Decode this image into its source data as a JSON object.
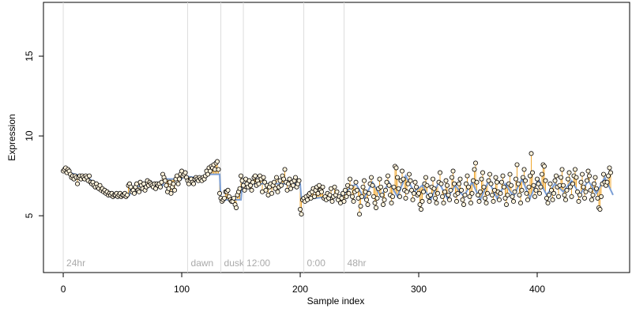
{
  "chart_data": {
    "type": "scatter",
    "x_label": "Sample index",
    "y_label": "Expression",
    "xlim": [
      -16.7,
      478
    ],
    "ylim": [
      1.44,
      18.37
    ],
    "xticks": [
      0,
      100,
      200,
      300,
      400
    ],
    "yticks": [
      5,
      10,
      15
    ],
    "annotations": [
      {
        "x": 0,
        "label": "24hr"
      },
      {
        "x": 105,
        "label": "dawn"
      },
      {
        "x": 133,
        "label": "dusk"
      },
      {
        "x": 152,
        "label": "12:00"
      },
      {
        "x": 203,
        "label": "0:00"
      },
      {
        "x": 237,
        "label": "48hr"
      }
    ],
    "residual_color": "#f0a830",
    "series": [
      {
        "color": "#000000",
        "values": [
          7.8,
          7.9,
          8.0,
          7.7,
          7.9,
          7.8,
          7.6,
          7.4,
          7.5,
          7.3,
          7.5,
          7.4,
          7.0,
          7.4,
          7.5,
          7.3,
          7.5,
          7.4,
          7.3,
          7.5,
          7.4,
          7.2,
          7.5,
          7.1,
          7.0,
          7.1,
          6.9,
          6.8,
          7.0,
          6.8,
          6.7,
          6.9,
          6.6,
          6.7,
          6.5,
          6.6,
          6.4,
          6.5,
          6.3,
          6.4,
          6.3,
          6.4,
          6.2,
          6.3,
          6.3,
          6.4,
          6.2,
          6.3,
          6.4,
          6.2,
          6.3,
          6.3,
          6.4,
          6.2,
          6.3,
          6.9,
          7.0,
          6.8,
          6.5,
          6.6,
          6.4,
          6.8,
          7.0,
          6.6,
          6.5,
          7.1,
          6.9,
          6.7,
          7.0,
          6.6,
          6.8,
          7.2,
          6.9,
          7.1,
          7.0,
          6.9,
          6.8,
          7.0,
          6.7,
          7.0,
          6.9,
          7.0,
          6.8,
          7.1,
          7.6,
          7.4,
          7.2,
          6.9,
          6.5,
          6.7,
          7.1,
          6.4,
          6.8,
          7.0,
          6.6,
          7.3,
          7.5,
          7.0,
          7.3,
          7.6,
          7.8,
          7.5,
          7.6,
          7.7,
          7.4,
          7.2,
          7.0,
          7.2,
          7.3,
          7.1,
          7.0,
          7.3,
          7.4,
          7.3,
          7.2,
          7.4,
          7.3,
          7.2,
          7.4,
          7.3,
          7.5,
          7.8,
          7.6,
          8.0,
          7.8,
          8.1,
          8.0,
          8.2,
          7.9,
          8.3,
          8.4,
          7.9,
          6.4,
          6.1,
          5.9,
          6.0,
          6.1,
          6.5,
          6.5,
          6.6,
          6.2,
          6.0,
          5.9,
          5.9,
          6.1,
          5.7,
          5.5,
          6.3,
          6.5,
          6.7,
          7.5,
          7.2,
          6.9,
          6.6,
          7.3,
          7.0,
          6.8,
          7.2,
          6.9,
          6.6,
          7.1,
          7.4,
          7.5,
          6.9,
          7.2,
          7.0,
          7.5,
          7.3,
          6.5,
          7.4,
          7.1,
          6.6,
          6.9,
          6.3,
          6.8,
          7.0,
          6.4,
          6.9,
          7.1,
          6.7,
          7.4,
          6.5,
          6.8,
          7.2,
          6.9,
          7.5,
          7.3,
          7.9,
          7.1,
          6.6,
          7.0,
          7.3,
          6.7,
          7.1,
          6.9,
          7.2,
          7.4,
          6.8,
          7.0,
          7.2,
          5.4,
          5.1,
          6.0,
          6.1,
          5.9,
          6.2,
          6.0,
          6.3,
          6.4,
          6.1,
          6.5,
          6.7,
          6.2,
          6.6,
          6.8,
          6.4,
          6.9,
          6.6,
          6.5,
          6.8,
          6.1,
          6.2,
          6.0,
          6.4,
          6.1,
          6.3,
          6.7,
          5.9,
          6.2,
          6.8,
          6.3,
          6.5,
          6.0,
          6.2,
          5.8,
          6.1,
          6.4,
          5.9,
          6.6,
          6.2,
          6.9,
          6.4,
          7.3,
          6.8,
          6.2,
          5.9,
          6.5,
          7.1,
          6.6,
          6.1,
          5.1,
          5.6,
          6.2,
          6.8,
          7.2,
          6.5,
          6.0,
          5.7,
          6.4,
          7.0,
          7.4,
          6.9,
          6.2,
          5.8,
          5.5,
          6.1,
          6.7,
          7.3,
          6.8,
          6.3,
          5.7,
          6.0,
          6.6,
          7.1,
          7.5,
          6.9,
          6.3,
          5.8,
          6.2,
          6.8,
          8.1,
          8.0,
          7.4,
          6.7,
          6.2,
          7.2,
          7.8,
          7.3,
          6.6,
          6.1,
          6.5,
          7.0,
          7.6,
          7.2,
          6.6,
          6.0,
          6.4,
          7.1,
          6.8,
          6.3,
          6.4,
          5.7,
          5.4,
          5.9,
          6.5,
          7.0,
          7.4,
          6.9,
          6.2,
          5.9,
          6.3,
          6.8,
          7.3,
          6.7,
          6.1,
          5.8,
          6.4,
          7.1,
          7.7,
          7.0,
          6.2,
          5.8,
          6.5,
          7.2,
          6.9,
          6.3,
          6.0,
          6.6,
          7.4,
          7.8,
          7.0,
          6.3,
          5.9,
          6.4,
          7.0,
          7.3,
          6.6,
          6.0,
          5.7,
          6.3,
          7.0,
          7.5,
          6.8,
          6.2,
          5.8,
          6.4,
          7.2,
          7.9,
          8.3,
          7.1,
          6.3,
          5.9,
          6.5,
          7.3,
          7.7,
          6.8,
          6.1,
          5.8,
          6.4,
          7.2,
          7.6,
          7.0,
          6.3,
          5.9,
          6.6,
          7.4,
          7.1,
          6.5,
          6.0,
          6.4,
          7.1,
          7.5,
          6.8,
          6.1,
          5.7,
          6.3,
          7.0,
          7.6,
          6.9,
          6.2,
          5.9,
          6.5,
          7.3,
          8.2,
          7.0,
          6.3,
          5.8,
          6.6,
          7.4,
          7.9,
          7.2,
          6.4,
          6.0,
          6.8,
          7.5,
          8.9,
          7.7,
          6.9,
          6.2,
          6.6,
          7.3,
          7.0,
          6.4,
          6.8,
          7.6,
          8.2,
          8.1,
          7.2,
          6.1,
          5.8,
          6.3,
          7.0,
          6.6,
          6.0,
          6.4,
          7.2,
          7.5,
          6.8,
          6.2,
          6.9,
          7.4,
          7.9,
          6.9,
          6.3,
          6.0,
          6.6,
          7.3,
          7.7,
          6.8,
          6.2,
          7.0,
          7.5,
          7.9,
          7.4,
          6.5,
          5.9,
          6.3,
          7.1,
          7.6,
          6.8,
          6.1,
          6.5,
          7.2,
          7.8,
          7.5,
          6.6,
          6.0,
          6.3,
          7.0,
          7.4,
          6.7,
          6.1,
          5.5,
          5.4,
          6.2,
          7.0,
          7.6,
          7.1,
          6.9,
          7.1,
          7.5,
          8.0,
          7.7
        ]
      },
      {
        "type": "line",
        "color": "#7b9fd6",
        "x": [
          0,
          20,
          40,
          56,
          57,
          84,
          85,
          100,
          101,
          120,
          121,
          132,
          133,
          150,
          151,
          200,
          201,
          236,
          240,
          247,
          254,
          261,
          268,
          275,
          282,
          289,
          296,
          303,
          310,
          317,
          324,
          331,
          338,
          345,
          352,
          359,
          366,
          373,
          380,
          387,
          394,
          401,
          408,
          415,
          422,
          429,
          436,
          443,
          450,
          457,
          464
        ],
        "values": [
          7.8,
          7.4,
          6.4,
          6.3,
          6.8,
          6.9,
          7.3,
          7.3,
          7.5,
          7.3,
          7.6,
          7.6,
          6.0,
          6.0,
          7.0,
          7.0,
          6.0,
          6.3,
          6.6,
          7.0,
          6.1,
          7.1,
          6.2,
          7.1,
          6.2,
          7.5,
          6.5,
          6.9,
          6.0,
          7.1,
          6.1,
          6.9,
          6.2,
          7.1,
          6.0,
          7.2,
          6.1,
          7.0,
          6.2,
          7.3,
          6.1,
          7.3,
          6.3,
          7.0,
          6.5,
          7.2,
          6.3,
          7.2,
          6.4,
          7.4,
          6.3
        ]
      }
    ]
  }
}
